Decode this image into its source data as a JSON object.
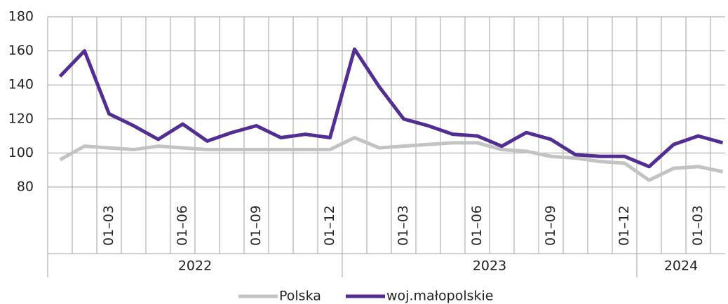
{
  "chart_data": {
    "type": "line",
    "categories": [
      null,
      null,
      "01–03",
      null,
      null,
      "01–06",
      null,
      null,
      "01–09",
      null,
      null,
      "01–12",
      null,
      null,
      "01–03",
      null,
      null,
      "01–06",
      null,
      null,
      "01–09",
      null,
      null,
      "01–12",
      null,
      null,
      "01–03",
      null
    ],
    "groups": [
      "2022",
      "2023",
      "2024"
    ],
    "series": [
      {
        "name": "Polska",
        "color": "#c3c3c3",
        "values": [
          96,
          104,
          103,
          102,
          104,
          103,
          102,
          102,
          102,
          102,
          102,
          102,
          109,
          103,
          104,
          105,
          106,
          106,
          102,
          101,
          98,
          97,
          95,
          94,
          84,
          91,
          92,
          89
        ]
      },
      {
        "name": "woj.małopolskie",
        "color": "#522d92",
        "values": [
          145,
          160,
          123,
          116,
          108,
          117,
          107,
          112,
          116,
          109,
          111,
          109,
          161,
          139,
          120,
          116,
          111,
          110,
          104,
          112,
          108,
          99,
          98,
          98,
          92,
          105,
          110,
          106
        ]
      }
    ],
    "ylim": [
      80,
      180
    ],
    "yticks": [
      80,
      100,
      120,
      140,
      160,
      180
    ],
    "grid": true,
    "legend": "bottom"
  }
}
